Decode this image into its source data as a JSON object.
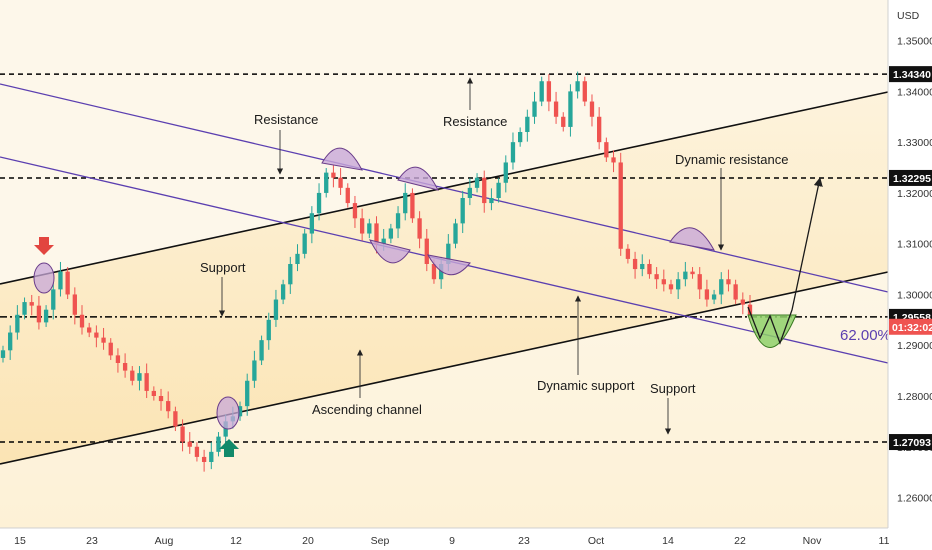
{
  "chart_data": {
    "type": "candlestick",
    "currency": "USD",
    "x_ticks": [
      "15",
      "23",
      "Aug",
      "12",
      "20",
      "Sep",
      "9",
      "23",
      "Oct",
      "14",
      "22",
      "Nov",
      "11"
    ],
    "y_ticks": [
      "1.35000",
      "1.34000",
      "1.33000",
      "1.32000",
      "1.31000",
      "1.30000",
      "1.29000",
      "1.28000",
      "1.27000",
      "1.26000"
    ],
    "ylim": [
      1.254,
      1.358
    ],
    "levels": [
      {
        "value": 1.3434,
        "label": "1.34340",
        "style": "dashed",
        "color": "#000000"
      },
      {
        "value": 1.32295,
        "label": "1.32295",
        "style": "dashed",
        "color": "#000000"
      },
      {
        "value": 1.29558,
        "label": "1.29558",
        "style": "dash-dot",
        "color": "#000000"
      },
      {
        "value": 1.27093,
        "label": "1.27093",
        "style": "dashed",
        "color": "#000000"
      }
    ],
    "time_badge": "01:32:02",
    "last_price": 1.296,
    "fib_label": "62.00%",
    "annotations": [
      "Resistance",
      "Resistance",
      "Dynamic resistance",
      "Support",
      "Ascending channel",
      "Dynamic support",
      "Support"
    ],
    "closes": [
      1.289,
      1.2925,
      1.296,
      1.2985,
      1.2978,
      1.2945,
      1.297,
      1.301,
      1.3045,
      1.3,
      1.296,
      1.2935,
      1.2925,
      1.2915,
      1.2905,
      1.288,
      1.2865,
      1.285,
      1.283,
      1.2845,
      1.281,
      1.28,
      1.279,
      1.277,
      1.274,
      1.271,
      1.27,
      1.268,
      1.267,
      1.269,
      1.272,
      1.275,
      1.276,
      1.278,
      1.283,
      1.287,
      1.291,
      1.295,
      1.299,
      1.302,
      1.306,
      1.308,
      1.312,
      1.316,
      1.32,
      1.324,
      1.323,
      1.321,
      1.318,
      1.315,
      1.312,
      1.314,
      1.31,
      1.311,
      1.313,
      1.316,
      1.32,
      1.315,
      1.311,
      1.306,
      1.303,
      1.306,
      1.31,
      1.314,
      1.319,
      1.321,
      1.323,
      1.318,
      1.319,
      1.322,
      1.326,
      1.33,
      1.332,
      1.335,
      1.338,
      1.342,
      1.338,
      1.335,
      1.333,
      1.34,
      1.342,
      1.338,
      1.335,
      1.33,
      1.327,
      1.326,
      1.309,
      1.307,
      1.305,
      1.306,
      1.304,
      1.303,
      1.302,
      1.301,
      1.303,
      1.3045,
      1.304,
      1.301,
      1.299,
      1.3,
      1.303,
      1.302,
      1.299,
      1.298,
      1.296
    ]
  }
}
